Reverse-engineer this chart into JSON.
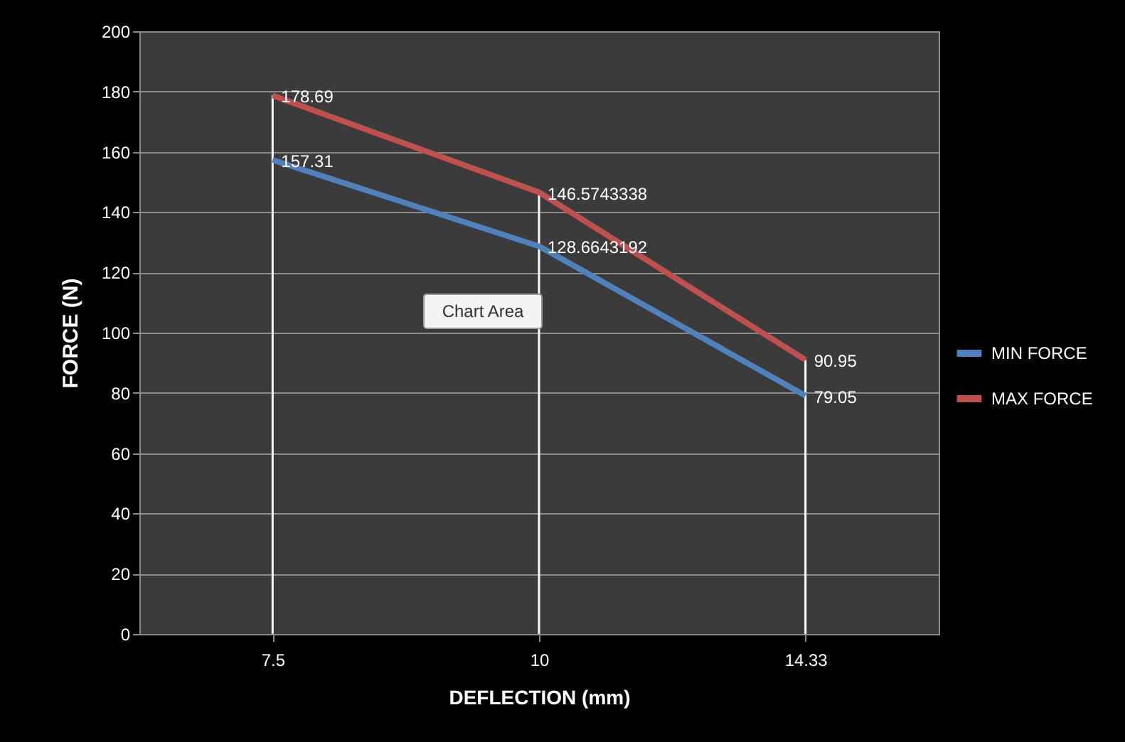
{
  "chart_data": {
    "type": "line",
    "xlabel": "DEFLECTION  (mm)",
    "ylabel": "FORCE (N)",
    "categories": [
      "7.5",
      "10",
      "14.33"
    ],
    "series": [
      {
        "name": "MIN FORCE",
        "color": "#4f81bd",
        "values": [
          157.31,
          128.6643192,
          79.05
        ]
      },
      {
        "name": "MAX FORCE",
        "color": "#c0504d",
        "values": [
          178.69,
          146.5743338,
          90.95
        ]
      }
    ],
    "ylim": [
      0,
      200
    ],
    "yticks": [
      0,
      20,
      40,
      60,
      80,
      100,
      120,
      140,
      160,
      180,
      200
    ],
    "grid": "y",
    "legend": "right",
    "data_labels": true,
    "line_style": "solid",
    "marker": "none",
    "ref_lines": [
      {
        "axis": "x",
        "value": "7.5",
        "color": "#ffffff"
      },
      {
        "axis": "x",
        "value": "10",
        "color": "#ffffff"
      },
      {
        "axis": "x",
        "value": "14.33",
        "color": "#ffffff"
      }
    ],
    "annotations": [
      "Chart Area"
    ]
  }
}
